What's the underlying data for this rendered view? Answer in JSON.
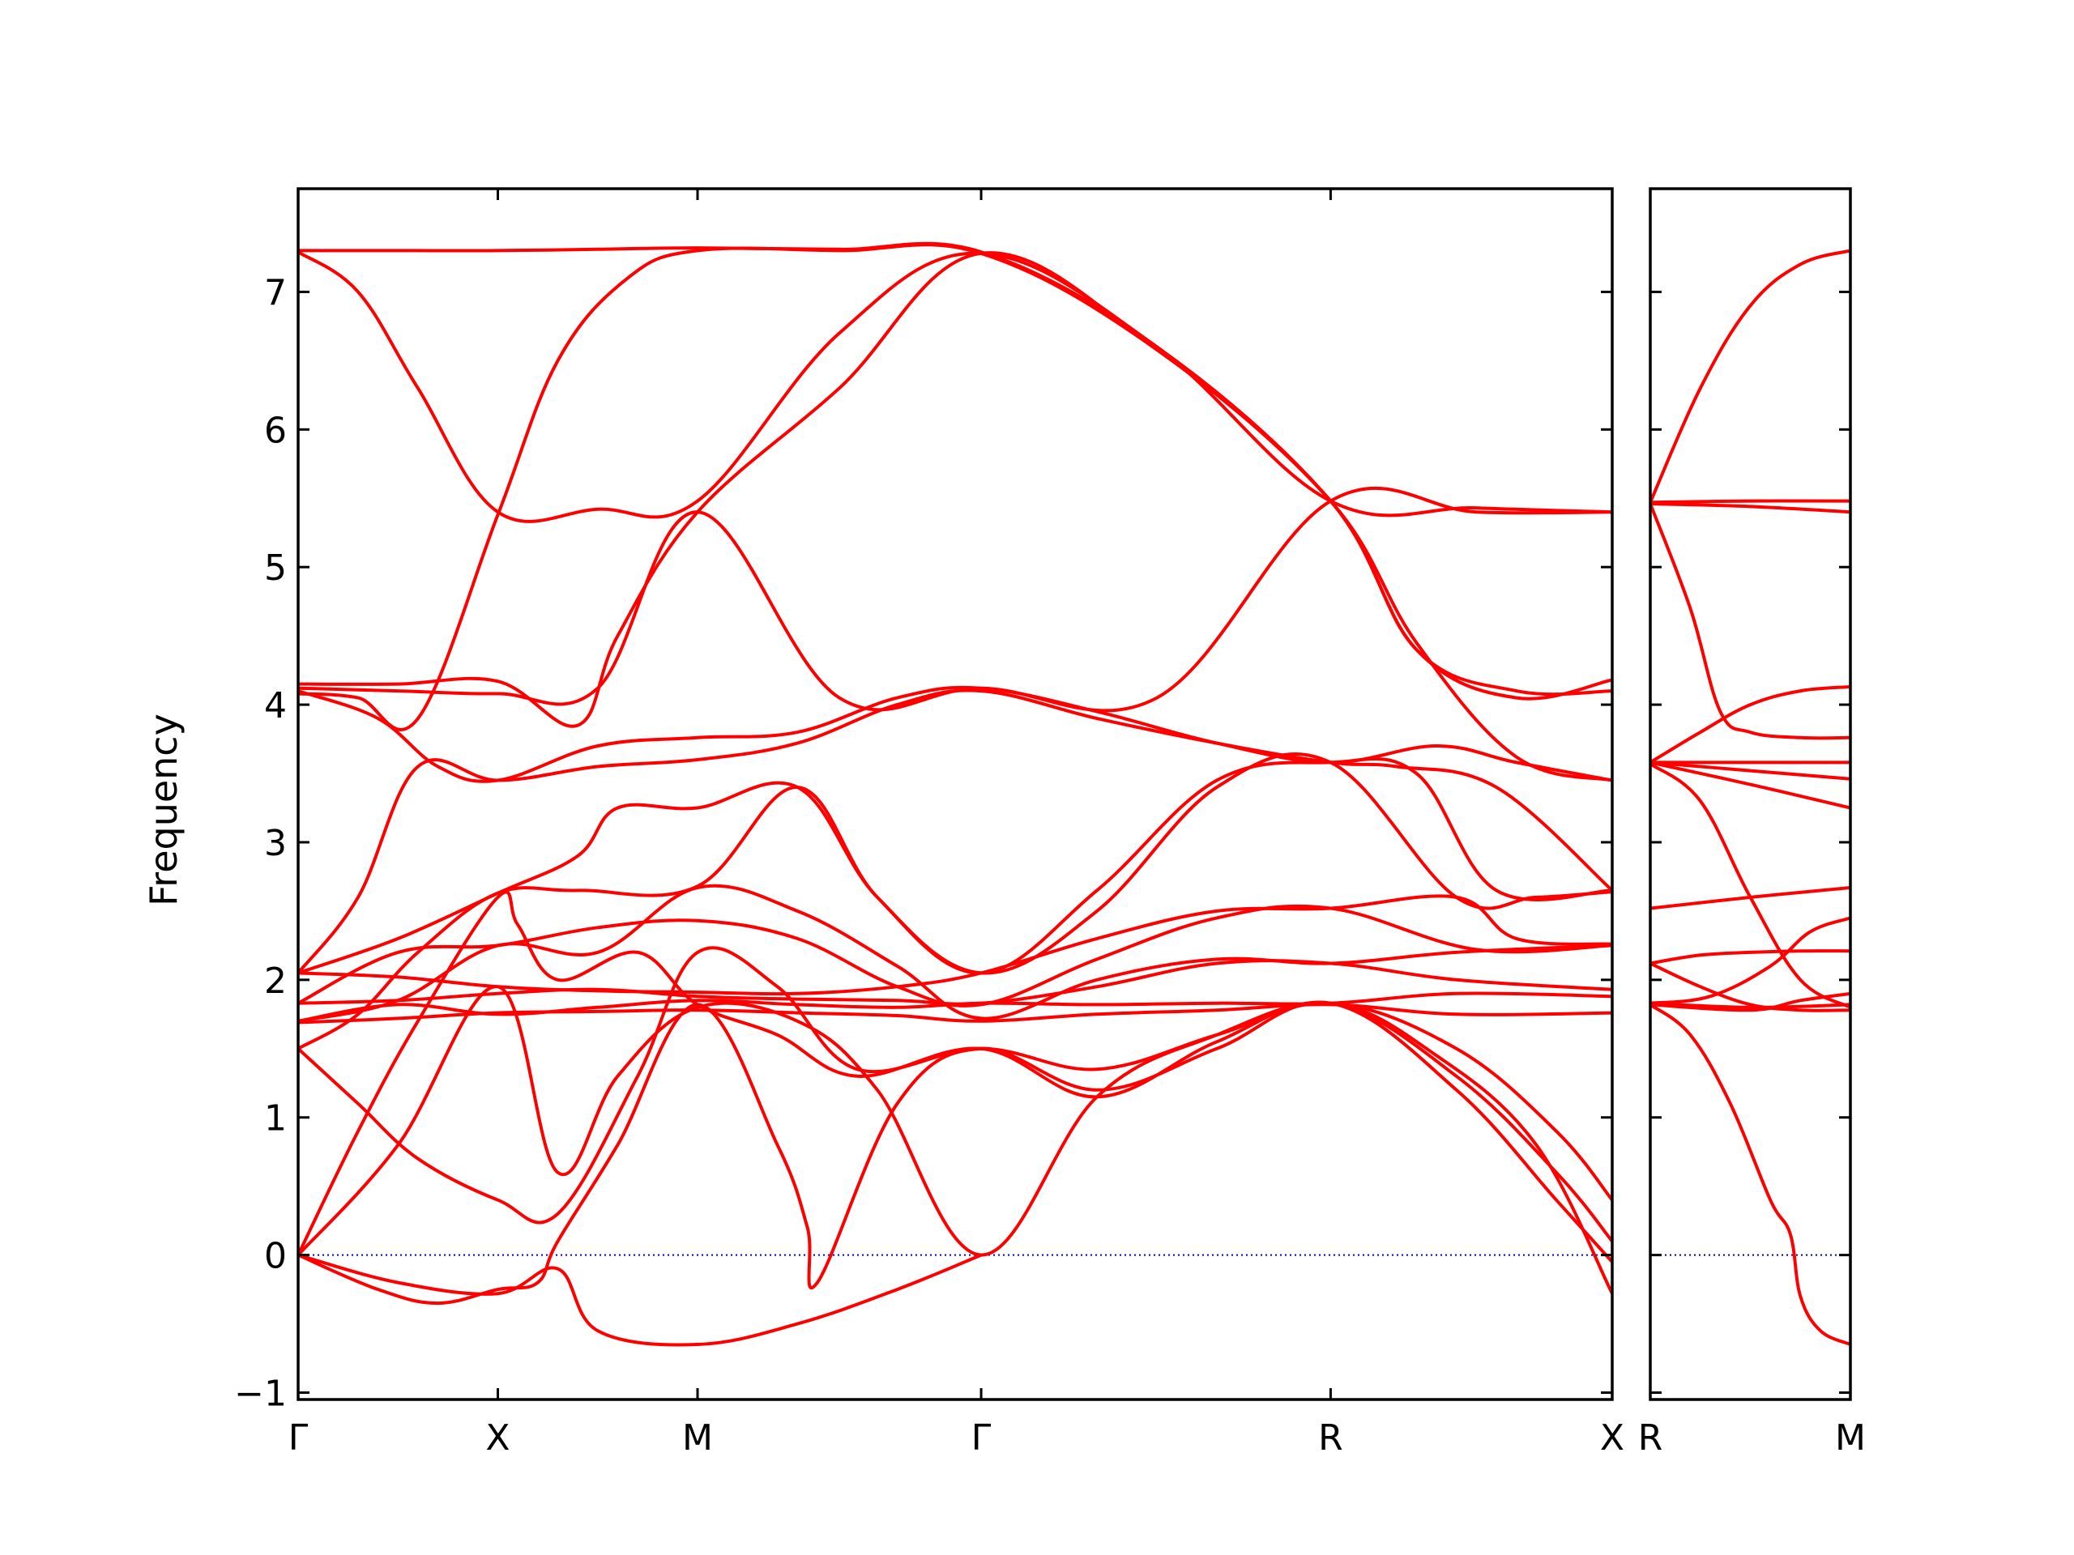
{
  "chart_data": {
    "type": "line",
    "ylabel": "Frequency",
    "ylim": [
      -1.05,
      7.75
    ],
    "y_ticks": [
      "−1",
      "0",
      "1",
      "2",
      "3",
      "4",
      "5",
      "6",
      "7"
    ],
    "y_tick_values": [
      -1,
      0,
      1,
      2,
      3,
      4,
      5,
      6,
      7
    ],
    "zero_line": true,
    "colors": {
      "band": "#ff0000",
      "zero_line": "#0000cc",
      "frame": "#000000"
    },
    "panels": [
      {
        "path_labels": [
          "Γ",
          "X",
          "M",
          "Γ",
          "R",
          "X"
        ],
        "path_positions": [
          0,
          1,
          2,
          3.42,
          5.17,
          6.58
        ],
        "xlim": [
          0,
          6.58
        ],
        "series": [
          {
            "x": [
              0,
              0.5,
              1,
              1.5,
              2,
              2.71,
              3.42,
              4.3,
              5.17,
              5.9,
              6.58
            ],
            "y": [
              7.3,
              7.3,
              7.3,
              7.31,
              7.32,
              7.31,
              7.29,
              6.6,
              5.48,
              5.43,
              5.4
            ]
          },
          {
            "x": [
              0,
              0.3,
              0.6,
              1,
              1.5,
              2,
              2.71,
              3.42,
              4.3,
              5.17,
              5.6,
              6.1,
              6.58
            ],
            "y": [
              7.29,
              7.0,
              6.3,
              5.4,
              5.42,
              5.48,
              6.7,
              7.28,
              6.6,
              5.48,
              4.4,
              4.05,
              4.18
            ]
          },
          {
            "x": [
              0,
              0.3,
              0.6,
              1,
              1.3,
              1.65,
              2,
              2.71,
              3.42,
              4.3,
              5.17,
              5.6,
              6.1,
              6.58
            ],
            "y": [
              4.08,
              4.05,
              3.9,
              5.38,
              6.5,
              7.1,
              7.3,
              7.3,
              7.28,
              6.58,
              5.48,
              4.4,
              4.1,
              4.1
            ]
          },
          {
            "x": [
              0,
              0.5,
              1,
              1.4,
              1.6,
              2,
              2.71,
              3.42,
              4.3,
              5.17,
              5.6,
              6.1,
              6.58
            ],
            "y": [
              4.15,
              4.15,
              4.17,
              3.85,
              4.5,
              5.4,
              6.3,
              7.28,
              6.58,
              5.48,
              4.45,
              3.62,
              3.45
            ]
          },
          {
            "x": [
              0,
              0.5,
              1,
              1.5,
              2,
              2.71,
              3.42,
              4.3,
              5.17,
              5.9,
              6.58
            ],
            "y": [
              4.12,
              4.1,
              4.08,
              4.12,
              5.4,
              4.05,
              4.12,
              4.05,
              5.48,
              5.4,
              5.4
            ]
          },
          {
            "x": [
              0,
              0.4,
              0.7,
              1,
              1.5,
              2,
              2.5,
              3.0,
              3.42,
              4.0,
              4.6,
              5.17,
              5.7,
              6.1,
              6.58
            ],
            "y": [
              4.1,
              3.9,
              3.55,
              3.45,
              3.7,
              3.76,
              3.8,
              4.05,
              4.12,
              3.95,
              3.72,
              3.58,
              3.7,
              3.58,
              3.45
            ]
          },
          {
            "x": [
              0,
              0.3,
              0.6,
              1,
              1.5,
              2,
              2.5,
              3.0,
              3.42,
              4.0,
              4.6,
              5.17,
              5.5,
              6.0,
              6.58
            ],
            "y": [
              2.05,
              2.6,
              3.55,
              3.45,
              3.55,
              3.6,
              3.72,
              4.0,
              4.1,
              3.9,
              3.72,
              3.58,
              3.55,
              3.4,
              2.65
            ]
          },
          {
            "x": [
              0,
              0.5,
              1,
              1.4,
              1.6,
              2,
              2.5,
              2.9,
              3.42,
              4.0,
              4.6,
              5.17,
              5.6,
              6.0,
              6.58
            ],
            "y": [
              2.05,
              2.3,
              2.63,
              2.9,
              3.25,
              3.25,
              3.4,
              2.6,
              2.05,
              2.65,
              3.45,
              3.58,
              3.5,
              2.65,
              2.65
            ]
          },
          {
            "x": [
              0,
              0.3,
              0.6,
              1,
              1.4,
              2,
              2.5,
              2.9,
              3.42,
              4.0,
              4.6,
              5.17,
              5.8,
              6.2,
              6.58
            ],
            "y": [
              1.5,
              1.75,
              2.2,
              2.63,
              2.65,
              2.68,
              3.4,
              2.6,
              2.05,
              2.5,
              3.4,
              3.58,
              2.6,
              2.6,
              2.64
            ]
          },
          {
            "x": [
              0,
              0.5,
              1,
              1.5,
              2,
              2.5,
              3.0,
              3.42,
              4.0,
              4.6,
              5.17,
              5.8,
              6.1,
              6.58
            ],
            "y": [
              2.05,
              2.02,
              1.95,
              1.92,
              1.91,
              1.9,
              1.95,
              2.05,
              2.3,
              2.5,
              2.52,
              2.6,
              2.3,
              2.26
            ]
          },
          {
            "x": [
              0,
              0.5,
              1,
              1.5,
              2,
              2.5,
              3.0,
              3.42,
              4.0,
              4.6,
              5.17,
              5.9,
              6.58
            ],
            "y": [
              1.83,
              2.2,
              2.25,
              2.38,
              2.43,
              2.3,
              1.95,
              1.82,
              2.15,
              2.45,
              2.52,
              2.22,
              2.25
            ]
          },
          {
            "x": [
              0,
              0.5,
              1,
              1.5,
              2,
              2.5,
              3.0,
              3.42,
              4.0,
              4.6,
              5.17,
              5.8,
              6.58
            ],
            "y": [
              1.7,
              1.85,
              2.25,
              2.2,
              2.67,
              2.5,
              2.1,
              1.72,
              2.0,
              2.15,
              2.12,
              2.2,
              2.25
            ]
          },
          {
            "x": [
              0,
              0.5,
              1,
              1.5,
              2,
              2.5,
              3.0,
              3.42,
              4.0,
              4.6,
              5.17,
              5.8,
              6.58
            ],
            "y": [
              1.83,
              1.85,
              1.9,
              1.93,
              1.88,
              1.86,
              1.85,
              1.83,
              1.95,
              2.12,
              2.12,
              2.0,
              1.93
            ]
          },
          {
            "x": [
              0,
              0.5,
              1,
              1.5,
              2,
              2.5,
              3.0,
              3.42,
              4.0,
              4.6,
              5.17,
              5.8,
              6.58
            ],
            "y": [
              1.7,
              1.82,
              1.75,
              1.8,
              1.85,
              1.82,
              1.8,
              1.83,
              1.82,
              1.83,
              1.83,
              1.9,
              1.88
            ]
          },
          {
            "x": [
              0,
              0.5,
              1,
              1.5,
              2,
              2.5,
              3.0,
              3.42,
              4.0,
              4.6,
              5.17,
              5.8,
              6.58
            ],
            "y": [
              1.69,
              1.72,
              1.76,
              1.77,
              1.78,
              1.76,
              1.74,
              1.7,
              1.75,
              1.78,
              1.82,
              1.75,
              1.76
            ]
          },
          {
            "x": [
              0,
              0.3,
              0.6,
              1,
              1.3,
              1.7,
              2,
              2.4,
              2.8,
              3.42,
              4.0,
              4.6,
              5.17,
              5.8,
              6.3,
              6.58
            ],
            "y": [
              1.5,
              1.1,
              0.7,
              0.4,
              0.3,
              1.3,
              2.2,
              1.95,
              1.35,
              1.5,
              1.35,
              1.6,
              1.83,
              1.5,
              0.9,
              0.4
            ]
          },
          {
            "x": [
              0,
              0.3,
              0.6,
              1,
              1.1,
              1.3,
              1.7,
              2,
              2.4,
              2.8,
              3.42,
              4.0,
              4.6,
              5.17,
              5.8,
              6.3,
              6.58
            ],
            "y": [
              0,
              0.9,
              1.7,
              2.6,
              2.4,
              2.0,
              2.2,
              1.82,
              1.6,
              1.3,
              1.5,
              1.15,
              1.55,
              1.83,
              1.3,
              0.6,
              0.1
            ]
          },
          {
            "x": [
              0,
              0.5,
              1,
              1.3,
              1.6,
              2,
              2.5,
              2.9,
              3.42,
              4.0,
              4.6,
              5.17,
              5.7,
              6.2,
              6.58
            ],
            "y": [
              0,
              0.8,
              1.95,
              0.6,
              1.3,
              1.8,
              1.7,
              1.2,
              0.0,
              1.15,
              1.6,
              1.83,
              1.45,
              0.8,
              -0.28
            ]
          },
          {
            "x": [
              0,
              0.4,
              0.7,
              1,
              1.2,
              1.3,
              1.6,
              2,
              2.4,
              2.55,
              2.6,
              3.0,
              3.42,
              4.0,
              4.6,
              5.17,
              5.8,
              6.3,
              6.58
            ],
            "y": [
              0,
              -0.25,
              -0.35,
              -0.25,
              -0.2,
              0.1,
              0.8,
              1.82,
              0.8,
              0.2,
              -0.2,
              1.1,
              1.5,
              1.2,
              1.5,
              1.83,
              1.2,
              0.4,
              -0.05
            ]
          },
          {
            "x": [
              0,
              0.5,
              1,
              1.3,
              1.5,
              2,
              2.5,
              3.0,
              3.42
            ],
            "y": [
              0,
              -0.2,
              -0.28,
              -0.1,
              -0.55,
              -0.65,
              -0.5,
              -0.25,
              0.0
            ]
          }
        ]
      },
      {
        "path_labels": [
          "R",
          "M"
        ],
        "path_positions": [
          0,
          1
        ],
        "xlim": [
          0,
          1
        ],
        "series": [
          {
            "x": [
              0,
              0.25,
              0.5,
              0.75,
              1
            ],
            "y": [
              5.47,
              6.3,
              6.9,
              7.2,
              7.3
            ]
          },
          {
            "x": [
              0,
              0.5,
              1
            ],
            "y": [
              5.47,
              5.48,
              5.48
            ]
          },
          {
            "x": [
              0,
              0.5,
              1
            ],
            "y": [
              5.46,
              5.44,
              5.4
            ]
          },
          {
            "x": [
              0,
              0.2,
              0.35,
              0.5,
              0.75,
              1
            ],
            "y": [
              5.46,
              4.7,
              3.95,
              3.8,
              3.76,
              3.76
            ]
          },
          {
            "x": [
              0,
              0.25,
              0.5,
              0.75,
              1
            ],
            "y": [
              3.58,
              3.8,
              4.0,
              4.1,
              4.13
            ]
          },
          {
            "x": [
              0,
              0.5,
              1
            ],
            "y": [
              3.58,
              3.58,
              3.58
            ]
          },
          {
            "x": [
              0,
              0.5,
              1
            ],
            "y": [
              3.58,
              3.52,
              3.46
            ]
          },
          {
            "x": [
              0,
              0.5,
              1
            ],
            "y": [
              3.58,
              3.42,
              3.25
            ]
          },
          {
            "x": [
              0,
              0.25,
              0.5,
              0.75,
              1
            ],
            "y": [
              3.57,
              3.3,
              2.6,
              2.0,
              1.8
            ]
          },
          {
            "x": [
              0,
              0.5,
              1
            ],
            "y": [
              2.52,
              2.6,
              2.67
            ]
          },
          {
            "x": [
              0,
              0.25,
              0.5,
              0.75,
              1
            ],
            "y": [
              2.12,
              2.18,
              2.2,
              2.21,
              2.21
            ]
          },
          {
            "x": [
              0,
              0.25,
              0.5,
              0.75,
              1
            ],
            "y": [
              2.12,
              1.95,
              1.82,
              1.78,
              1.78
            ]
          },
          {
            "x": [
              0,
              0.3,
              0.6,
              0.8,
              1
            ],
            "y": [
              1.83,
              1.88,
              2.1,
              2.35,
              2.45
            ]
          },
          {
            "x": [
              0,
              0.5,
              1
            ],
            "y": [
              1.83,
              1.8,
              1.82
            ]
          },
          {
            "x": [
              0,
              0.5,
              0.75,
              1
            ],
            "y": [
              1.82,
              1.78,
              1.85,
              1.9
            ]
          },
          {
            "x": [
              0,
              0.2,
              0.4,
              0.6,
              0.7,
              0.75,
              0.85,
              1
            ],
            "y": [
              1.82,
              1.6,
              1.1,
              0.4,
              0.15,
              -0.3,
              -0.55,
              -0.65
            ]
          }
        ]
      }
    ]
  }
}
